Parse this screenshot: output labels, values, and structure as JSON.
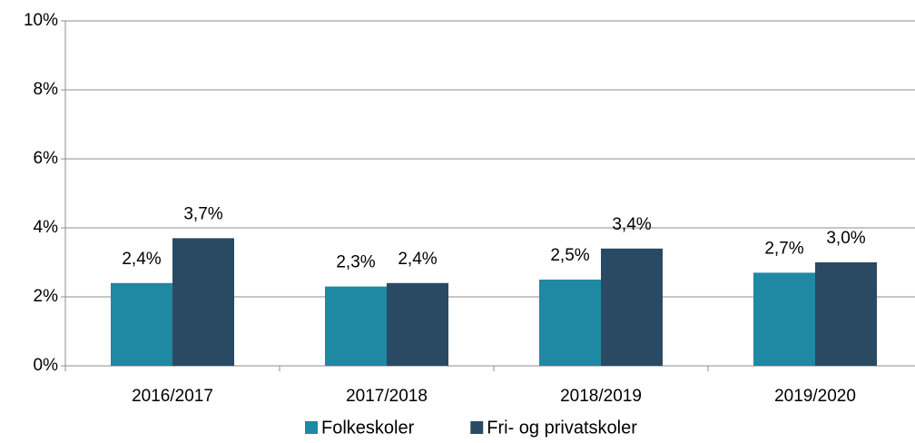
{
  "chart_data": {
    "type": "bar",
    "categories": [
      "2016/2017",
      "2017/2018",
      "2018/2019",
      "2019/2020"
    ],
    "series": [
      {
        "name": "Folkeskoler",
        "color": "#1f88a2",
        "values": [
          2.4,
          2.3,
          2.5,
          2.7
        ],
        "value_labels": [
          "2,4%",
          "2,3%",
          "2,5%",
          "2,7%"
        ]
      },
      {
        "name": "Fri- og privatskoler",
        "color": "#2a4a63",
        "values": [
          3.7,
          2.4,
          3.4,
          3.0
        ],
        "value_labels": [
          "3,7%",
          "2,4%",
          "3,4%",
          "3,0%"
        ]
      }
    ],
    "ylim": [
      0,
      10
    ],
    "yticks": [
      {
        "value": 0,
        "label": "0%"
      },
      {
        "value": 2,
        "label": "2%"
      },
      {
        "value": 4,
        "label": "4%"
      },
      {
        "value": 6,
        "label": "6%"
      },
      {
        "value": 8,
        "label": "8%"
      },
      {
        "value": 10,
        "label": "10%"
      }
    ],
    "grid": true,
    "legend": "bottom"
  }
}
